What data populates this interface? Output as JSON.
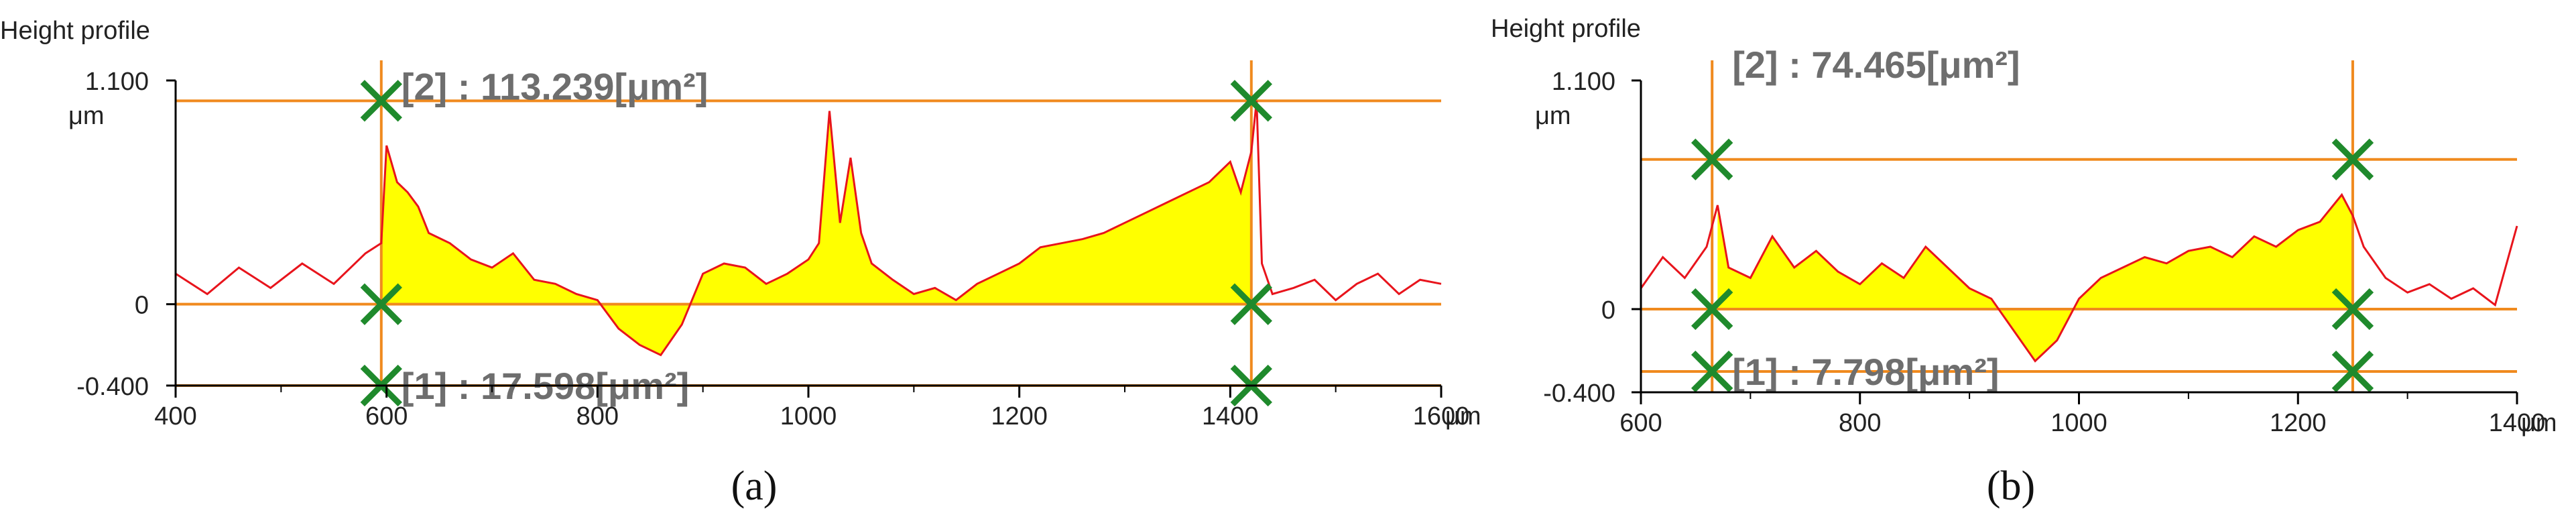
{
  "colors": {
    "profile_line": "#e8141c",
    "fill_area": "#ffff00",
    "cursor_line": "#f08a1e",
    "marker": "#1f8a2c",
    "axis": "#000000",
    "label_gray": "#6e6e6e"
  },
  "chart_data": [
    {
      "type": "area",
      "panel_caption": "(a)",
      "title": "Height profile",
      "xlabel": "μm",
      "ylabel": "μm",
      "xlim": [
        400,
        1600
      ],
      "ylim": [
        -0.4,
        1.1
      ],
      "y_tick_labels": [
        "1.100",
        "0",
        "-0.400"
      ],
      "x_ticks": [
        400,
        600,
        800,
        1000,
        1200,
        1400,
        1600
      ],
      "x_tick_labels": [
        "400",
        "600",
        "800",
        "1000",
        "1200",
        "1400",
        "1600"
      ],
      "cursors_x": [
        595,
        1420
      ],
      "reference_lines_y": [
        0.0,
        -0.4,
        1.0
      ],
      "area_labels": [
        "[2] : 113.239[μm²]",
        "[1] : 17.598[μm²]"
      ],
      "profile": {
        "x": [
          400,
          430,
          460,
          490,
          520,
          550,
          580,
          595,
          600,
          610,
          620,
          630,
          640,
          660,
          680,
          700,
          720,
          740,
          760,
          780,
          800,
          820,
          840,
          860,
          880,
          900,
          920,
          940,
          960,
          980,
          1000,
          1010,
          1020,
          1030,
          1040,
          1050,
          1060,
          1080,
          1100,
          1120,
          1140,
          1160,
          1180,
          1200,
          1220,
          1240,
          1260,
          1280,
          1300,
          1320,
          1340,
          1360,
          1380,
          1400,
          1410,
          1420,
          1425,
          1430,
          1440,
          1460,
          1480,
          1500,
          1520,
          1540,
          1560,
          1580,
          1600
        ],
        "y": [
          0.15,
          0.05,
          0.18,
          0.08,
          0.2,
          0.1,
          0.25,
          0.3,
          0.78,
          0.6,
          0.55,
          0.48,
          0.35,
          0.3,
          0.22,
          0.18,
          0.25,
          0.12,
          0.1,
          0.05,
          0.02,
          -0.12,
          -0.2,
          -0.25,
          -0.1,
          0.15,
          0.2,
          0.18,
          0.1,
          0.15,
          0.22,
          0.3,
          0.95,
          0.4,
          0.72,
          0.35,
          0.2,
          0.12,
          0.05,
          0.08,
          0.02,
          0.1,
          0.15,
          0.2,
          0.28,
          0.3,
          0.32,
          0.35,
          0.4,
          0.45,
          0.5,
          0.55,
          0.6,
          0.7,
          0.55,
          0.75,
          1.0,
          0.2,
          0.05,
          0.08,
          0.12,
          0.02,
          0.1,
          0.15,
          0.05,
          0.12,
          0.1
        ]
      }
    },
    {
      "type": "area",
      "panel_caption": "(b)",
      "title": "Height profile",
      "xlabel": "μm",
      "ylabel": "μm",
      "xlim": [
        600,
        1400
      ],
      "ylim": [
        -0.4,
        1.1
      ],
      "y_tick_labels": [
        "1.100",
        "0",
        "-0.400"
      ],
      "x_ticks": [
        600,
        800,
        1000,
        1200,
        1400
      ],
      "x_tick_labels": [
        "600",
        "800",
        "1000",
        "1200",
        "1400"
      ],
      "cursors_x": [
        665,
        1250
      ],
      "reference_lines_y": [
        0.0,
        -0.3,
        0.72
      ],
      "area_labels": [
        "[2] : 74.465[μm²]",
        "[1] : 7.798[μm²]"
      ],
      "profile": {
        "x": [
          600,
          620,
          640,
          660,
          670,
          680,
          700,
          720,
          740,
          760,
          780,
          800,
          820,
          840,
          860,
          880,
          900,
          920,
          940,
          960,
          980,
          1000,
          1020,
          1040,
          1060,
          1080,
          1100,
          1120,
          1140,
          1160,
          1180,
          1200,
          1220,
          1240,
          1250,
          1260,
          1280,
          1300,
          1320,
          1340,
          1360,
          1380,
          1400
        ],
        "y": [
          0.1,
          0.25,
          0.15,
          0.3,
          0.5,
          0.2,
          0.15,
          0.35,
          0.2,
          0.28,
          0.18,
          0.12,
          0.22,
          0.15,
          0.3,
          0.2,
          0.1,
          0.05,
          -0.1,
          -0.25,
          -0.15,
          0.05,
          0.15,
          0.2,
          0.25,
          0.22,
          0.28,
          0.3,
          0.25,
          0.35,
          0.3,
          0.38,
          0.42,
          0.55,
          0.45,
          0.3,
          0.15,
          0.08,
          0.12,
          0.05,
          0.1,
          0.02,
          0.4
        ]
      }
    }
  ]
}
